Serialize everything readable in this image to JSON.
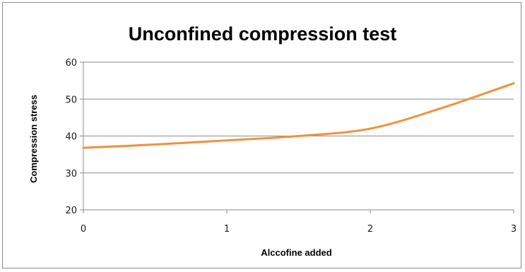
{
  "chart_data": {
    "type": "line",
    "title": "Unconfined compression test",
    "xlabel": "Alccofine added",
    "ylabel": "Compression stress",
    "x": [
      0,
      0.5,
      1,
      1.5,
      2,
      2.5,
      3
    ],
    "series": [
      {
        "values": [
          36.8,
          37.7,
          38.8,
          40.0,
          42.0,
          47.6,
          54.3
        ],
        "color": "#f0923b"
      }
    ],
    "xlim": [
      0,
      3
    ],
    "ylim": [
      20,
      60
    ],
    "xticks": [
      0,
      1,
      2,
      3
    ],
    "yticks": [
      20,
      30,
      40,
      50,
      60
    ],
    "grid": true,
    "gridline_color": "#8c8c8c",
    "legend": "none"
  }
}
